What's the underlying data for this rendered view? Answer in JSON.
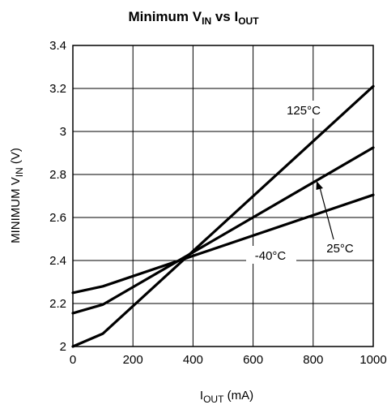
{
  "chart_data": {
    "type": "line",
    "title": {
      "main": "Minimum V",
      "main_sub": "IN",
      "mid": " vs I",
      "mid_sub": "OUT"
    },
    "xlabel": {
      "main": "I",
      "sub": "OUT",
      "tail": " (mA)"
    },
    "ylabel": {
      "main": "MINIMUM V",
      "sub": "IN",
      "tail": " (V)"
    },
    "xlim": [
      0,
      1000
    ],
    "ylim": [
      2,
      3.4
    ],
    "xticks": [
      0,
      200,
      400,
      600,
      800,
      1000
    ],
    "xtick_labels": [
      "0",
      "200",
      "400",
      "600",
      "800",
      "1000"
    ],
    "yticks": [
      2,
      2.2,
      2.4,
      2.6,
      2.8,
      3,
      3.2,
      3.4
    ],
    "ytick_labels": [
      "2",
      "2.2",
      "2.4",
      "2.6",
      "2.8",
      "3",
      "3.2",
      "3.4"
    ],
    "grid": true,
    "series": [
      {
        "name": "125°C",
        "x": [
          0,
          100,
          1000
        ],
        "y": [
          2.0,
          2.06,
          3.21
        ]
      },
      {
        "name": "25°C",
        "x": [
          0,
          100,
          1000
        ],
        "y": [
          2.155,
          2.195,
          2.925
        ]
      },
      {
        "name": "-40°C",
        "x": [
          0,
          100,
          1000
        ],
        "y": [
          2.25,
          2.28,
          2.705
        ]
      }
    ],
    "annotations": [
      {
        "name": "125°C"
      },
      {
        "name": "25°C"
      },
      {
        "name": "-40°C"
      }
    ]
  }
}
